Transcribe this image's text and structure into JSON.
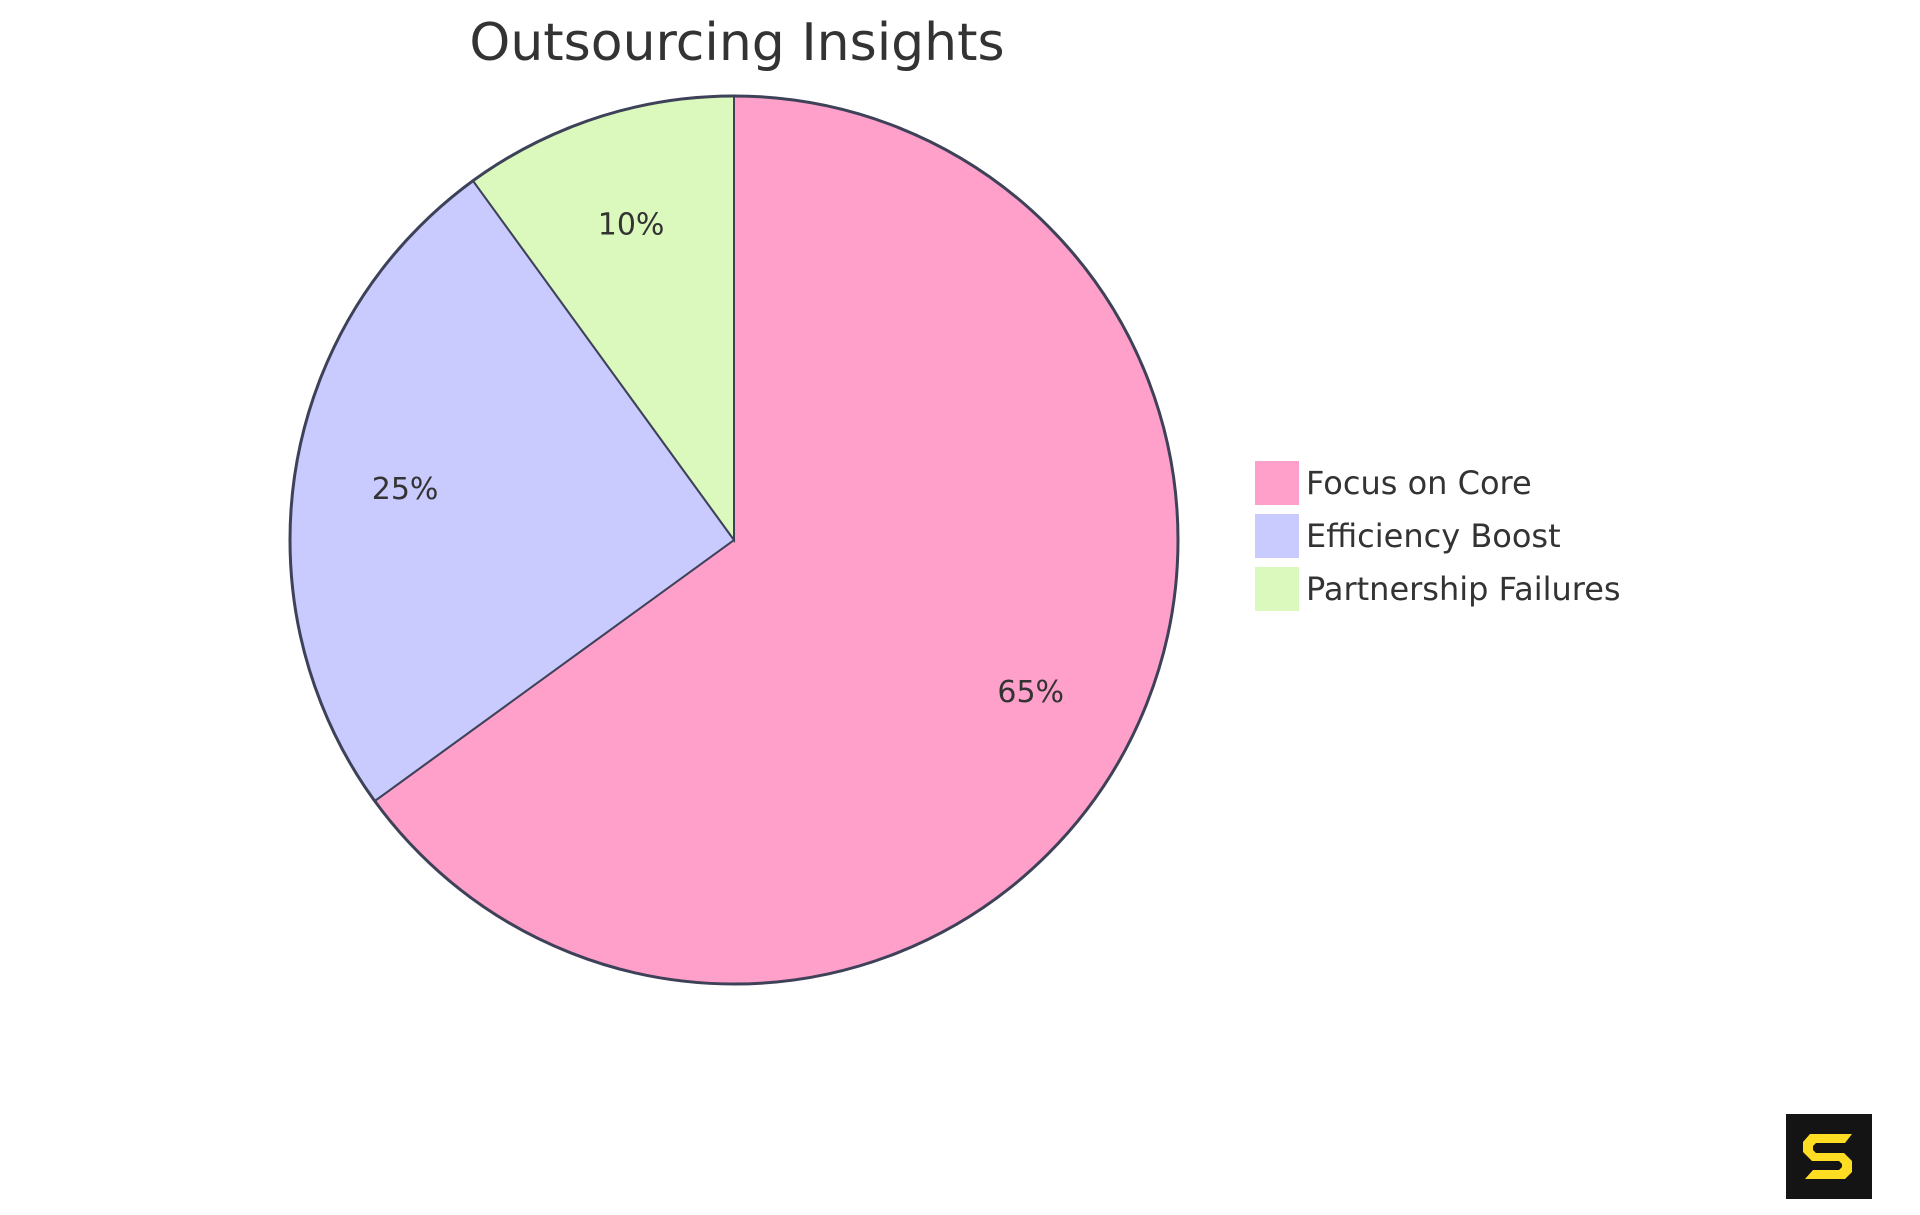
{
  "chart_data": {
    "type": "pie",
    "title": "Outsourcing Insights",
    "categories": [
      "Focus on Core",
      "Efficiency Boost",
      "Partnership Failures"
    ],
    "values": [
      65,
      25,
      10
    ],
    "labels": [
      "65%",
      "25%",
      "10%"
    ],
    "colors": [
      "#FFA0CB",
      "#C9CAFD",
      "#DBF9BC"
    ],
    "legend_position": "right",
    "start_angle_deg": 0,
    "direction": "clockwise from 12 o'clock",
    "stroke_color": "#3E4259"
  },
  "legend": {
    "items": [
      {
        "label": "Focus on Core",
        "color": "#FFA0CB"
      },
      {
        "label": "Efficiency Boost",
        "color": "#C9CAFD"
      },
      {
        "label": "Partnership Failures",
        "color": "#DBF9BC"
      }
    ]
  },
  "logo": {
    "icon": "s-logo-icon",
    "bg": "#141414",
    "fg": "#FFDD22"
  }
}
